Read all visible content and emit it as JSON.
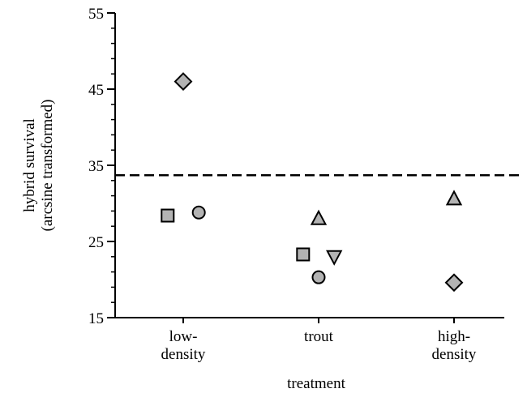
{
  "chart_data": {
    "type": "scatter",
    "xlabel": "treatment",
    "ylabel_lines": [
      "hybrid survival",
      "(arcsine transformed)"
    ],
    "categories": [
      {
        "label_lines": [
          "low-",
          "density"
        ]
      },
      {
        "label_lines": [
          "trout"
        ]
      },
      {
        "label_lines": [
          "high-",
          "density"
        ]
      }
    ],
    "ylim": [
      15,
      55
    ],
    "yticks": [
      15,
      25,
      35,
      45,
      55
    ],
    "yminor_step": 2,
    "reference_line": {
      "y": 33.7,
      "style": "dashed"
    },
    "marker_fill": "#b3b3b3",
    "points": [
      {
        "category": 0,
        "offset": 0.0,
        "y": 46.0,
        "shape": "diamond"
      },
      {
        "category": 0,
        "offset": -0.12,
        "y": 28.4,
        "shape": "square"
      },
      {
        "category": 0,
        "offset": 0.12,
        "y": 28.8,
        "shape": "circle"
      },
      {
        "category": 1,
        "offset": 0.0,
        "y": 28.0,
        "shape": "triangle-up"
      },
      {
        "category": 1,
        "offset": -0.12,
        "y": 23.3,
        "shape": "square"
      },
      {
        "category": 1,
        "offset": 0.12,
        "y": 23.0,
        "shape": "triangle-down"
      },
      {
        "category": 1,
        "offset": 0.0,
        "y": 20.3,
        "shape": "circle"
      },
      {
        "category": 2,
        "offset": 0.0,
        "y": 30.6,
        "shape": "triangle-up"
      },
      {
        "category": 2,
        "offset": 0.0,
        "y": 19.6,
        "shape": "diamond"
      }
    ]
  }
}
